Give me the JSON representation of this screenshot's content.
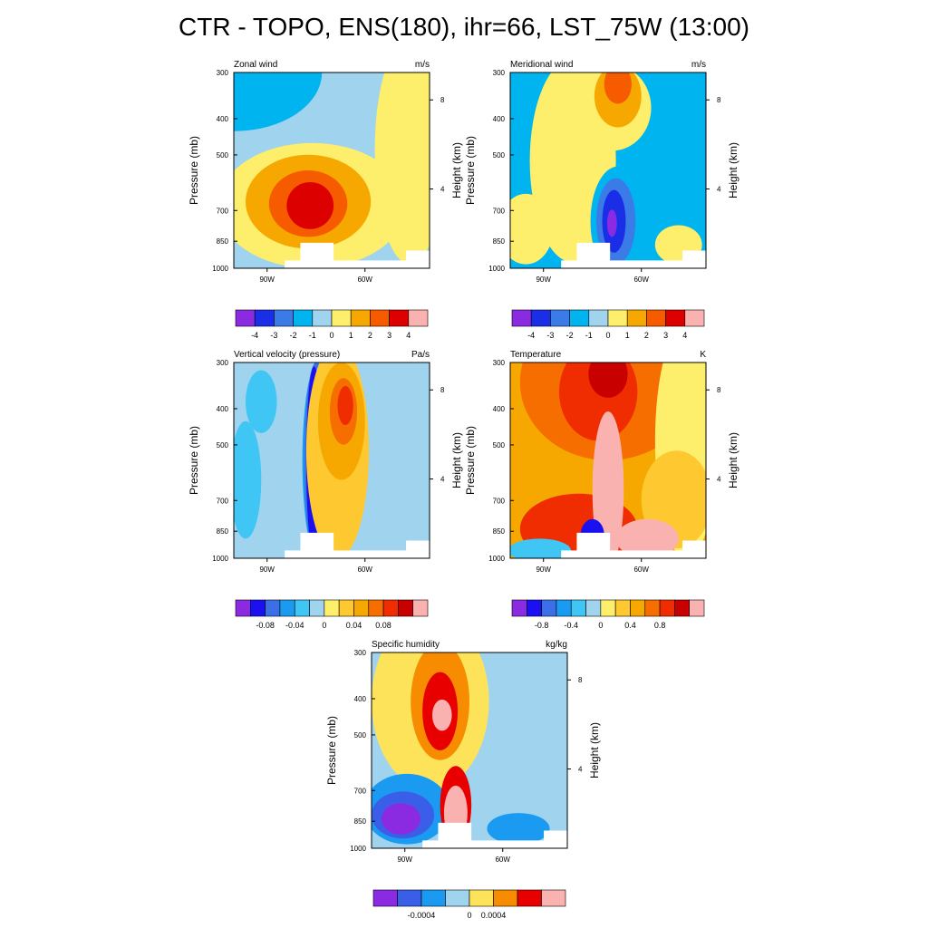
{
  "figure_title": "CTR - TOPO, ENS(180), ihr=66, LST_75W (13:00)",
  "chart_data": [
    {
      "type": "heatmap",
      "title": "Zonal wind",
      "units": "m/s",
      "ylabel": "Pressure (mb)",
      "ylabel_right": "Height (km)",
      "y_ticks": [
        "300",
        "400",
        "500",
        "700",
        "850",
        "1000"
      ],
      "y_right_ticks": [
        "8",
        "4"
      ],
      "x_ticks": [
        "90W",
        "60W"
      ],
      "colorbar_labels": [
        "-4",
        "-3",
        "-2",
        "-1",
        "0",
        "1",
        "2",
        "3",
        "4"
      ],
      "colors": [
        "#8a2be2",
        "#1a2ee8",
        "#3a7be8",
        "#00b4f0",
        "#9fd3ee",
        "#fdef6b",
        "#f7a800",
        "#f75b00",
        "#dd0000",
        "#f9b2b0"
      ]
    },
    {
      "type": "heatmap",
      "title": "Meridional wind",
      "units": "m/s",
      "ylabel": "Pressure (mb)",
      "ylabel_right": "Height (km)",
      "y_ticks": [
        "300",
        "400",
        "500",
        "700",
        "850",
        "1000"
      ],
      "y_right_ticks": [
        "8",
        "4"
      ],
      "x_ticks": [
        "90W",
        "60W"
      ],
      "colorbar_labels": [
        "-4",
        "-3",
        "-2",
        "-1",
        "0",
        "1",
        "2",
        "3",
        "4"
      ],
      "colors": [
        "#8a2be2",
        "#1a2ee8",
        "#3a7be8",
        "#00b4f0",
        "#9fd3ee",
        "#fdef6b",
        "#f7a800",
        "#f75b00",
        "#dd0000",
        "#f9b2b0"
      ]
    },
    {
      "type": "heatmap",
      "title": "Vertical velocity (pressure)",
      "units": "Pa/s",
      "ylabel": "Pressure (mb)",
      "ylabel_right": "Height (km)",
      "y_ticks": [
        "300",
        "400",
        "500",
        "700",
        "850",
        "1000"
      ],
      "y_right_ticks": [
        "8",
        "4"
      ],
      "x_ticks": [
        "90W",
        "60W"
      ],
      "colorbar_labels": [
        "-0.08",
        "-0.04",
        "0",
        "0.04",
        "0.08"
      ],
      "colors": [
        "#8a2be2",
        "#1a10f0",
        "#3a6fe8",
        "#1a9af0",
        "#3fc6f4",
        "#9fd3ee",
        "#fdef6b",
        "#fdc830",
        "#f7a800",
        "#f76e00",
        "#f02d00",
        "#c80000",
        "#f9b2b0"
      ]
    },
    {
      "type": "heatmap",
      "title": "Temperature",
      "units": "K",
      "ylabel": "Pressure (mb)",
      "ylabel_right": "Height (km)",
      "y_ticks": [
        "300",
        "400",
        "500",
        "700",
        "850",
        "1000"
      ],
      "y_right_ticks": [
        "8",
        "4"
      ],
      "x_ticks": [
        "90W",
        "60W"
      ],
      "colorbar_labels": [
        "-0.8",
        "-0.4",
        "0",
        "0.4",
        "0.8"
      ],
      "colors": [
        "#8a2be2",
        "#1a10f0",
        "#3a6fe8",
        "#1a9af0",
        "#3fc6f4",
        "#9fd3ee",
        "#fdef6b",
        "#fdc830",
        "#f7a800",
        "#f76e00",
        "#f02d00",
        "#c80000",
        "#f9b2b0"
      ]
    },
    {
      "type": "heatmap",
      "title": "Specific humidity",
      "units": "kg/kg",
      "ylabel": "Pressure (mb)",
      "ylabel_right": "Height (km)",
      "y_ticks": [
        "300",
        "400",
        "500",
        "700",
        "850",
        "1000"
      ],
      "y_right_ticks": [
        "8",
        "4"
      ],
      "x_ticks": [
        "90W",
        "60W"
      ],
      "colorbar_labels": [
        "-0.0004",
        "0",
        "0.0004"
      ],
      "colors": [
        "#8a2be2",
        "#3a5ee8",
        "#1a9af0",
        "#9fd3ee",
        "#fde35a",
        "#f78c00",
        "#e80000",
        "#f9b2b0"
      ]
    }
  ]
}
